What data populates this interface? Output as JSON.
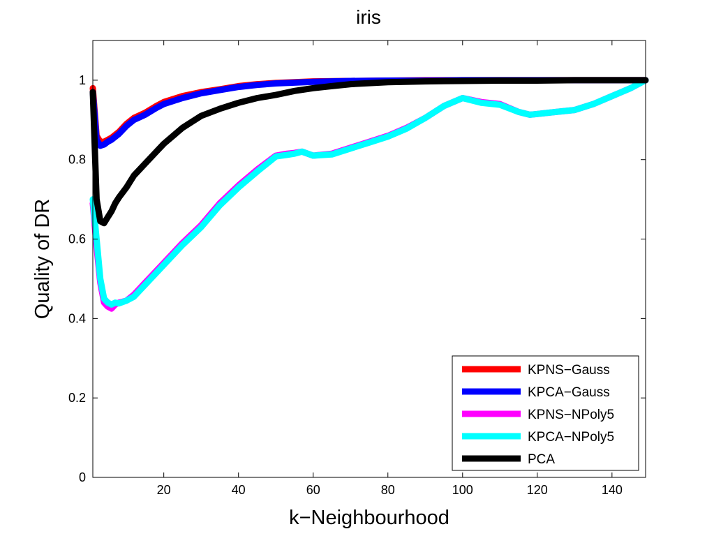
{
  "chart_data": {
    "type": "line",
    "title": "iris",
    "xlabel": "k−Neighbourhood",
    "ylabel": "Quality of DR",
    "xlim": [
      1,
      149
    ],
    "ylim": [
      0,
      1.1
    ],
    "xticks": [
      20,
      40,
      60,
      80,
      100,
      120,
      140
    ],
    "yticks": [
      0,
      0.2,
      0.4,
      0.6,
      0.8,
      1
    ],
    "ytick_labels": [
      "0",
      "0.2",
      "0.4",
      "0.6",
      "0.8",
      "1"
    ],
    "grid": false,
    "legend_position": "bottom-right",
    "series": [
      {
        "name": "KPNS−Gauss",
        "color": "#ff0000",
        "points": [
          [
            1,
            0.98
          ],
          [
            2,
            0.86
          ],
          [
            3,
            0.845
          ],
          [
            4,
            0.845
          ],
          [
            5,
            0.85
          ],
          [
            6,
            0.855
          ],
          [
            8,
            0.87
          ],
          [
            10,
            0.89
          ],
          [
            12,
            0.905
          ],
          [
            15,
            0.918
          ],
          [
            18,
            0.935
          ],
          [
            20,
            0.945
          ],
          [
            25,
            0.96
          ],
          [
            30,
            0.97
          ],
          [
            35,
            0.977
          ],
          [
            40,
            0.985
          ],
          [
            45,
            0.99
          ],
          [
            50,
            0.993
          ],
          [
            60,
            0.997
          ],
          [
            70,
            0.998
          ],
          [
            80,
            0.999
          ],
          [
            90,
            1.0
          ],
          [
            100,
            1.0
          ],
          [
            110,
            1.0
          ],
          [
            120,
            1.0
          ],
          [
            130,
            1.0
          ],
          [
            140,
            1.0
          ],
          [
            149,
            1.0
          ]
        ]
      },
      {
        "name": "KPCA−Gauss",
        "color": "#0000ff",
        "points": [
          [
            1,
            0.97
          ],
          [
            2,
            0.85
          ],
          [
            3,
            0.835
          ],
          [
            4,
            0.838
          ],
          [
            5,
            0.845
          ],
          [
            6,
            0.85
          ],
          [
            8,
            0.865
          ],
          [
            10,
            0.885
          ],
          [
            12,
            0.9
          ],
          [
            15,
            0.913
          ],
          [
            18,
            0.93
          ],
          [
            20,
            0.94
          ],
          [
            25,
            0.955
          ],
          [
            30,
            0.967
          ],
          [
            35,
            0.975
          ],
          [
            40,
            0.983
          ],
          [
            45,
            0.988
          ],
          [
            50,
            0.992
          ],
          [
            60,
            0.996
          ],
          [
            70,
            0.998
          ],
          [
            80,
            0.999
          ],
          [
            90,
            0.999
          ],
          [
            100,
            1.0
          ],
          [
            110,
            1.0
          ],
          [
            120,
            1.0
          ],
          [
            130,
            1.0
          ],
          [
            140,
            1.0
          ],
          [
            149,
            1.0
          ]
        ]
      },
      {
        "name": "KPNS−NPoly5",
        "color": "#ff00ff",
        "points": [
          [
            1,
            0.69
          ],
          [
            2,
            0.58
          ],
          [
            3,
            0.49
          ],
          [
            4,
            0.44
          ],
          [
            5,
            0.43
          ],
          [
            6,
            0.425
          ],
          [
            7,
            0.435
          ],
          [
            8,
            0.44
          ],
          [
            10,
            0.445
          ],
          [
            12,
            0.46
          ],
          [
            15,
            0.49
          ],
          [
            18,
            0.52
          ],
          [
            20,
            0.54
          ],
          [
            25,
            0.59
          ],
          [
            30,
            0.635
          ],
          [
            35,
            0.69
          ],
          [
            40,
            0.735
          ],
          [
            45,
            0.775
          ],
          [
            50,
            0.81
          ],
          [
            53,
            0.815
          ],
          [
            55,
            0.817
          ],
          [
            57,
            0.82
          ],
          [
            60,
            0.81
          ],
          [
            65,
            0.815
          ],
          [
            70,
            0.83
          ],
          [
            75,
            0.845
          ],
          [
            80,
            0.86
          ],
          [
            85,
            0.88
          ],
          [
            90,
            0.905
          ],
          [
            95,
            0.935
          ],
          [
            100,
            0.955
          ],
          [
            105,
            0.945
          ],
          [
            110,
            0.94
          ],
          [
            115,
            0.92
          ],
          [
            118,
            0.913
          ],
          [
            120,
            0.915
          ],
          [
            125,
            0.92
          ],
          [
            130,
            0.925
          ],
          [
            135,
            0.94
          ],
          [
            140,
            0.96
          ],
          [
            145,
            0.98
          ],
          [
            149,
            1.0
          ]
        ]
      },
      {
        "name": "KPCA−NPoly5",
        "color": "#00ffff",
        "points": [
          [
            1,
            0.7
          ],
          [
            2,
            0.6
          ],
          [
            3,
            0.5
          ],
          [
            4,
            0.45
          ],
          [
            5,
            0.44
          ],
          [
            6,
            0.435
          ],
          [
            7,
            0.44
          ],
          [
            8,
            0.438
          ],
          [
            10,
            0.445
          ],
          [
            12,
            0.455
          ],
          [
            15,
            0.485
          ],
          [
            18,
            0.515
          ],
          [
            20,
            0.535
          ],
          [
            25,
            0.585
          ],
          [
            30,
            0.63
          ],
          [
            35,
            0.685
          ],
          [
            40,
            0.73
          ],
          [
            45,
            0.77
          ],
          [
            50,
            0.808
          ],
          [
            53,
            0.812
          ],
          [
            55,
            0.815
          ],
          [
            57,
            0.82
          ],
          [
            60,
            0.81
          ],
          [
            65,
            0.813
          ],
          [
            70,
            0.828
          ],
          [
            75,
            0.843
          ],
          [
            80,
            0.858
          ],
          [
            85,
            0.878
          ],
          [
            90,
            0.905
          ],
          [
            95,
            0.935
          ],
          [
            100,
            0.955
          ],
          [
            105,
            0.943
          ],
          [
            110,
            0.938
          ],
          [
            115,
            0.92
          ],
          [
            118,
            0.913
          ],
          [
            120,
            0.915
          ],
          [
            125,
            0.92
          ],
          [
            130,
            0.925
          ],
          [
            135,
            0.94
          ],
          [
            140,
            0.96
          ],
          [
            145,
            0.98
          ],
          [
            149,
            1.0
          ]
        ]
      },
      {
        "name": "PCA",
        "color": "#000000",
        "points": [
          [
            1,
            0.97
          ],
          [
            2,
            0.7
          ],
          [
            3,
            0.645
          ],
          [
            4,
            0.64
          ],
          [
            5,
            0.655
          ],
          [
            6,
            0.67
          ],
          [
            7,
            0.69
          ],
          [
            8,
            0.705
          ],
          [
            10,
            0.73
          ],
          [
            12,
            0.76
          ],
          [
            15,
            0.79
          ],
          [
            18,
            0.82
          ],
          [
            20,
            0.84
          ],
          [
            25,
            0.88
          ],
          [
            30,
            0.91
          ],
          [
            35,
            0.928
          ],
          [
            40,
            0.943
          ],
          [
            45,
            0.955
          ],
          [
            50,
            0.963
          ],
          [
            55,
            0.973
          ],
          [
            60,
            0.98
          ],
          [
            65,
            0.985
          ],
          [
            70,
            0.99
          ],
          [
            80,
            0.995
          ],
          [
            90,
            0.997
          ],
          [
            100,
            0.998
          ],
          [
            110,
            0.999
          ],
          [
            120,
            0.999
          ],
          [
            130,
            1.0
          ],
          [
            140,
            1.0
          ],
          [
            149,
            1.0
          ]
        ]
      }
    ]
  }
}
